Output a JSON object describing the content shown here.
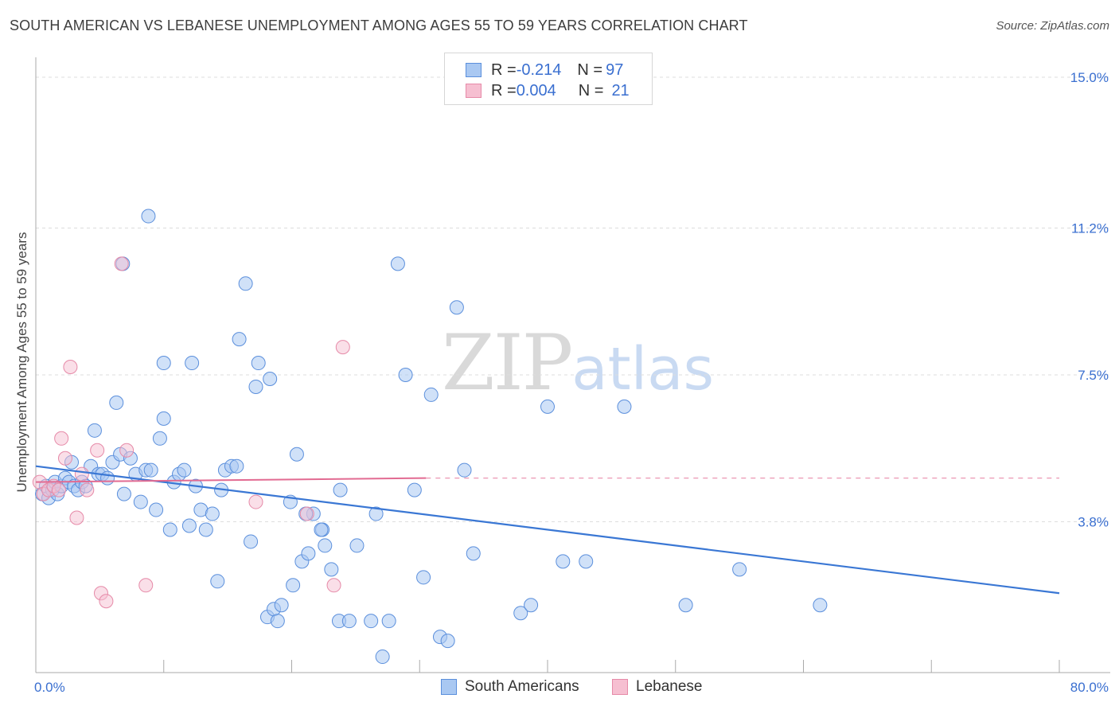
{
  "header": {
    "title": "SOUTH AMERICAN VS LEBANESE UNEMPLOYMENT AMONG AGES 55 TO 59 YEARS CORRELATION CHART",
    "source": "Source: ZipAtlas.com"
  },
  "watermark": {
    "zip": "ZIP",
    "atlas": "atlas"
  },
  "legend_top": {
    "rows": [
      {
        "r_label": "R = ",
        "r_value": "-0.214",
        "n_label": "N = ",
        "n_value": "97"
      },
      {
        "r_label": "R = ",
        "r_value": "0.004",
        "n_label": "N = ",
        "n_value": "21"
      }
    ]
  },
  "legend_bottom": {
    "items": [
      "South Americans",
      "Lebanese"
    ]
  },
  "colors": {
    "blue_fill": "#a9c8f2",
    "blue_stroke": "#5b8fdc",
    "blue_line": "#3a77d4",
    "pink_fill": "#f6bfd1",
    "pink_stroke": "#e68aa8",
    "pink_line": "#e26b92",
    "axis_text": "#3a6fd0",
    "grid": "#dddddd"
  },
  "chart_data": {
    "type": "scatter",
    "title": "SOUTH AMERICAN VS LEBANESE UNEMPLOYMENT AMONG AGES 55 TO 59 YEARS CORRELATION CHART",
    "xlabel": "",
    "ylabel": "Unemployment Among Ages 55 to 59 years",
    "xlim": [
      0,
      80
    ],
    "ylim": [
      0,
      15.5
    ],
    "x_tick_labels": [
      "0.0%",
      "80.0%"
    ],
    "y_ticks": [
      3.8,
      7.5,
      11.2,
      15.0
    ],
    "y_tick_labels": [
      "3.8%",
      "7.5%",
      "11.2%",
      "15.0%"
    ],
    "grid": true,
    "legend": "top-center",
    "series": [
      {
        "name": "South Americans",
        "color": "#a9c8f2",
        "trend": {
          "x": [
            0,
            80
          ],
          "y": [
            5.2,
            2.0
          ],
          "style": "solid"
        },
        "points": [
          [
            0.5,
            4.5
          ],
          [
            0.8,
            4.7
          ],
          [
            1.0,
            4.4
          ],
          [
            1.3,
            4.6
          ],
          [
            1.5,
            4.8
          ],
          [
            1.7,
            4.5
          ],
          [
            2.0,
            4.7
          ],
          [
            2.3,
            4.9
          ],
          [
            2.6,
            4.8
          ],
          [
            2.8,
            5.3
          ],
          [
            3.0,
            4.7
          ],
          [
            3.3,
            4.6
          ],
          [
            3.6,
            4.8
          ],
          [
            3.9,
            4.7
          ],
          [
            4.3,
            5.2
          ],
          [
            4.6,
            6.1
          ],
          [
            4.9,
            5.0
          ],
          [
            5.2,
            5.0
          ],
          [
            5.6,
            4.9
          ],
          [
            6.0,
            5.3
          ],
          [
            6.3,
            6.8
          ],
          [
            6.6,
            5.5
          ],
          [
            6.9,
            4.5
          ],
          [
            7.4,
            5.4
          ],
          [
            7.8,
            5.0
          ],
          [
            8.2,
            4.3
          ],
          [
            8.6,
            5.1
          ],
          [
            9.0,
            5.1
          ],
          [
            9.4,
            4.1
          ],
          [
            9.7,
            5.9
          ],
          [
            10.0,
            6.4
          ],
          [
            10.5,
            3.6
          ],
          [
            10.8,
            4.8
          ],
          [
            11.2,
            5.0
          ],
          [
            11.6,
            5.1
          ],
          [
            12.0,
            3.7
          ],
          [
            12.5,
            4.7
          ],
          [
            12.9,
            4.1
          ],
          [
            13.3,
            3.6
          ],
          [
            13.8,
            4.0
          ],
          [
            14.2,
            2.3
          ],
          [
            14.8,
            5.1
          ],
          [
            15.3,
            5.2
          ],
          [
            15.9,
            8.4
          ],
          [
            16.4,
            9.8
          ],
          [
            16.8,
            3.3
          ],
          [
            17.2,
            7.2
          ],
          [
            18.1,
            1.4
          ],
          [
            18.6,
            1.6
          ],
          [
            18.9,
            1.3
          ],
          [
            19.2,
            1.7
          ],
          [
            20.1,
            2.2
          ],
          [
            20.4,
            5.5
          ],
          [
            20.8,
            2.8
          ],
          [
            21.3,
            3.0
          ],
          [
            21.7,
            4.0
          ],
          [
            22.4,
            3.6
          ],
          [
            22.6,
            3.2
          ],
          [
            23.1,
            2.6
          ],
          [
            23.7,
            1.3
          ],
          [
            24.5,
            1.3
          ],
          [
            25.1,
            3.2
          ],
          [
            26.2,
            1.3
          ],
          [
            26.6,
            4.0
          ],
          [
            27.1,
            0.4
          ],
          [
            27.6,
            1.3
          ],
          [
            28.3,
            10.3
          ],
          [
            28.9,
            7.5
          ],
          [
            29.6,
            4.6
          ],
          [
            30.3,
            2.4
          ],
          [
            30.9,
            7.0
          ],
          [
            31.6,
            0.9
          ],
          [
            32.2,
            0.8
          ],
          [
            32.9,
            9.2
          ],
          [
            33.5,
            5.1
          ],
          [
            34.2,
            3.0
          ],
          [
            37.9,
            1.5
          ],
          [
            38.7,
            1.7
          ],
          [
            40.0,
            6.7
          ],
          [
            41.2,
            2.8
          ],
          [
            43.0,
            2.8
          ],
          [
            46.0,
            6.7
          ],
          [
            50.8,
            1.7
          ],
          [
            55.0,
            2.6
          ],
          [
            61.3,
            1.7
          ],
          [
            6.8,
            10.3
          ],
          [
            8.8,
            11.5
          ],
          [
            10.0,
            7.8
          ],
          [
            12.2,
            7.8
          ],
          [
            14.5,
            4.6
          ],
          [
            15.7,
            5.2
          ],
          [
            17.4,
            7.8
          ],
          [
            18.3,
            7.4
          ],
          [
            19.9,
            4.3
          ],
          [
            21.1,
            4.0
          ],
          [
            22.3,
            3.6
          ],
          [
            23.8,
            4.6
          ]
        ]
      },
      {
        "name": "Lebanese",
        "color": "#f6bfd1",
        "trend": {
          "x": [
            0,
            30.5,
            80
          ],
          "y": [
            4.8,
            4.9,
            4.9
          ],
          "style": "solid-then-dashed"
        },
        "points": [
          [
            0.3,
            4.8
          ],
          [
            0.6,
            4.5
          ],
          [
            1.0,
            4.6
          ],
          [
            1.4,
            4.7
          ],
          [
            1.8,
            4.6
          ],
          [
            2.0,
            5.9
          ],
          [
            2.3,
            5.4
          ],
          [
            2.7,
            7.7
          ],
          [
            3.2,
            3.9
          ],
          [
            3.6,
            5.0
          ],
          [
            4.0,
            4.6
          ],
          [
            4.8,
            5.6
          ],
          [
            5.1,
            2.0
          ],
          [
            5.5,
            1.8
          ],
          [
            6.7,
            10.3
          ],
          [
            7.1,
            5.6
          ],
          [
            8.6,
            2.2
          ],
          [
            17.2,
            4.3
          ],
          [
            21.2,
            4.0
          ],
          [
            23.3,
            2.2
          ],
          [
            24.0,
            8.2
          ]
        ]
      }
    ]
  }
}
